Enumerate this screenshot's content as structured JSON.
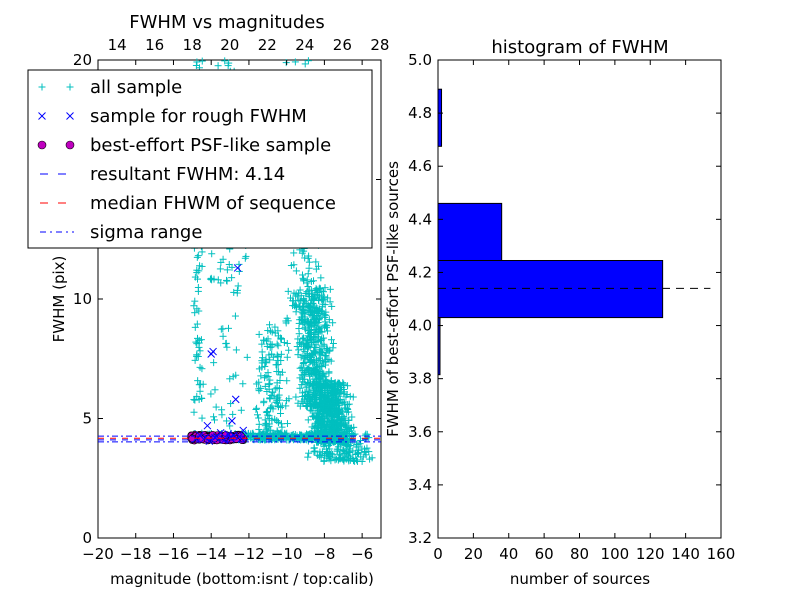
{
  "chart_data": [
    {
      "type": "scatter",
      "title": "FWHM vs magnitudes",
      "xlabel": "magnitude (bottom:isnt / top:calib)",
      "ylabel": "FWHM (pix)",
      "xlim": [
        -20,
        -5
      ],
      "ylim": [
        0,
        20
      ],
      "top_xlim": [
        12.98,
        28.06
      ],
      "x_ticks": [
        -20,
        -18,
        -16,
        -14,
        -12,
        -10,
        -8,
        -6
      ],
      "x_tick_labels": [
        "−20",
        "−18",
        "−16",
        "−14",
        "−12",
        "−10",
        "−8",
        "−6"
      ],
      "top_x_ticks": [
        14,
        16,
        18,
        20,
        22,
        24,
        26,
        28
      ],
      "top_x_tick_labels": [
        "14",
        "16",
        "18",
        "20",
        "22",
        "24",
        "26",
        "28"
      ],
      "y_ticks": [
        0,
        5,
        10,
        15,
        20
      ],
      "y_tick_labels": [
        "0",
        "5",
        "10",
        "15",
        "20"
      ],
      "grid": false,
      "legend_position": "top",
      "series": [
        {
          "name": "all sample",
          "marker": "+",
          "color": "#00bfbf",
          "clusters": [
            {
              "x": [
                -8.9,
                -6.4
              ],
              "y": [
                4.0,
                6.5
              ],
              "n": 600
            },
            {
              "x": [
                -9.6,
                -7.4
              ],
              "y": [
                5.5,
                10.5
              ],
              "n": 450
            },
            {
              "x": [
                -10.2,
                -8.0
              ],
              "y": [
                9.0,
                20.0
              ],
              "n": 200
            },
            {
              "x": [
                -11.8,
                -9.8
              ],
              "y": [
                4.1,
                9.0
              ],
              "n": 150
            },
            {
              "x": [
                -15.0,
                -14.4
              ],
              "y": [
                5.0,
                20.0
              ],
              "n": 90
            },
            {
              "x": [
                -14.4,
                -11.8
              ],
              "y": [
                4.5,
                20.0
              ],
              "n": 110
            },
            {
              "x": [
                -15.2,
                -5.2
              ],
              "y": [
                4.1,
                4.4
              ],
              "n": 320
            },
            {
              "x": [
                -9.0,
                -5.2
              ],
              "y": [
                3.2,
                4.1
              ],
              "n": 120
            }
          ]
        },
        {
          "name": "sample for rough FWHM",
          "marker": "x",
          "color": "#0000ff",
          "points": [
            [
              -12.6,
              11.3
            ],
            [
              -13.9,
              7.8
            ],
            [
              -14.0,
              7.7
            ],
            [
              -12.7,
              5.8
            ],
            [
              -12.9,
              4.9
            ],
            [
              -14.2,
              4.7
            ],
            [
              -13.5,
              4.4
            ],
            [
              -12.3,
              4.5
            ],
            [
              -14.6,
              4.3
            ],
            [
              -14.3,
              4.2
            ],
            [
              -13.7,
              4.25
            ],
            [
              -13.0,
              4.2
            ],
            [
              -12.5,
              4.25
            ],
            [
              -14.8,
              4.15
            ],
            [
              -13.3,
              4.1
            ],
            [
              -12.8,
              4.3
            ],
            [
              -14.1,
              4.05
            ],
            [
              -13.8,
              4.2
            ],
            [
              -12.4,
              4.15
            ],
            [
              -13.1,
              4.35
            ]
          ]
        },
        {
          "name": "best-effort PSF-like sample",
          "marker": "o",
          "color": "#bf00bf",
          "clusters": [
            {
              "x": [
                -15.1,
                -12.3
              ],
              "y": [
                4.08,
                4.32
              ],
              "n": 160
            }
          ]
        },
        {
          "name": "resultant FWHM: 4.14",
          "style": "dashed",
          "color": "#0000ff",
          "y": 4.14
        },
        {
          "name": "median FHWM of sequence",
          "style": "dashed",
          "color": "#ff0000",
          "y": 4.14
        },
        {
          "name": "sigma range",
          "style": "dashdot",
          "color": "#0000ff",
          "y": [
            4.02,
            4.26
          ]
        }
      ]
    },
    {
      "type": "bar",
      "orientation": "horizontal",
      "title": "histogram of FWHM",
      "xlabel": "number of sources",
      "ylabel": "FWHM of best-effort PSF-like sources",
      "xlim": [
        0,
        160
      ],
      "ylim": [
        3.2,
        5.0
      ],
      "x_ticks": [
        0,
        20,
        40,
        60,
        80,
        100,
        120,
        140,
        160
      ],
      "x_tick_labels": [
        "0",
        "20",
        "40",
        "60",
        "80",
        "100",
        "120",
        "140",
        "160"
      ],
      "y_ticks": [
        3.2,
        3.4,
        3.6,
        3.8,
        4.0,
        4.2,
        4.4,
        4.6,
        4.8,
        5.0
      ],
      "y_tick_labels": [
        "3.2",
        "3.4",
        "3.6",
        "3.8",
        "4.0",
        "4.2",
        "4.4",
        "4.6",
        "4.8",
        "5.0"
      ],
      "bar_color": "#0000ff",
      "bins": [
        {
          "y0": 3.815,
          "y1": 4.03,
          "count": 1
        },
        {
          "y0": 4.03,
          "y1": 4.245,
          "count": 127
        },
        {
          "y0": 4.245,
          "y1": 4.46,
          "count": 36
        },
        {
          "y0": 4.46,
          "y1": 4.675,
          "count": 0
        },
        {
          "y0": 4.675,
          "y1": 4.89,
          "count": 2
        }
      ],
      "reference_line": {
        "y": 4.14,
        "x_range": [
          0,
          154
        ],
        "style": "dashed",
        "color": "#000000"
      }
    }
  ]
}
